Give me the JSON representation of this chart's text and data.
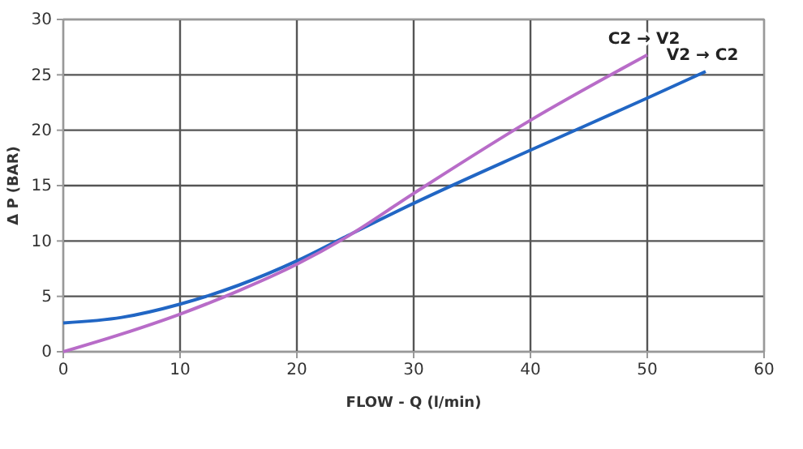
{
  "chart_data": {
    "type": "line",
    "xlabel": "FLOW - Q (l/min)",
    "ylabel": "Δ P (BAR)",
    "xlim": [
      0,
      60
    ],
    "xticks": [
      0,
      10,
      20,
      30,
      40,
      50,
      60
    ],
    "ylim": [
      0,
      30
    ],
    "yticks": [
      0,
      5,
      10,
      15,
      20,
      25,
      30
    ],
    "grid": true,
    "series": [
      {
        "name": "V2 → C2",
        "color": "#2166c4",
        "x": [
          0,
          5,
          10,
          15,
          20,
          24,
          30,
          40,
          50,
          55
        ],
        "values": [
          2.6,
          3.1,
          4.3,
          6,
          8.2,
          10.3,
          13.4,
          18.2,
          22.9,
          25.3
        ]
      },
      {
        "name": "C2 → V2",
        "color": "#b86cc8",
        "x": [
          0,
          5,
          10,
          15,
          20,
          24,
          30,
          40,
          50
        ],
        "values": [
          0,
          1.6,
          3.4,
          5.5,
          7.9,
          10.2,
          14.3,
          20.9,
          26.8
        ]
      }
    ]
  }
}
